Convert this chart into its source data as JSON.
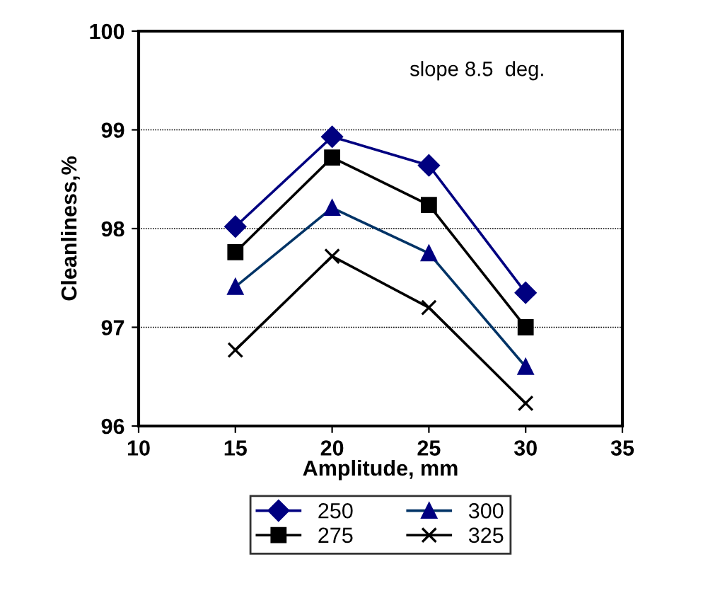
{
  "chart_data": {
    "type": "line",
    "xlabel": "Amplitude, mm",
    "ylabel": "Cleanliness,%",
    "x": [
      15,
      20,
      25,
      30
    ],
    "series": [
      {
        "name": "250",
        "color": "#000080",
        "marker": "diamond",
        "values": [
          98.02,
          98.93,
          98.64,
          97.35
        ]
      },
      {
        "name": "275",
        "color": "#000000",
        "marker": "square",
        "values": [
          97.76,
          98.72,
          98.24,
          97.0
        ]
      },
      {
        "name": "300",
        "color": "#003366",
        "marker": "triangle",
        "values": [
          97.41,
          98.21,
          97.75,
          96.6
        ]
      },
      {
        "name": "325",
        "color": "#000000",
        "marker": "cross",
        "values": [
          96.77,
          97.72,
          97.2,
          96.23
        ]
      }
    ],
    "xlim": [
      10,
      35
    ],
    "xticks": [
      10,
      15,
      20,
      25,
      30,
      35
    ],
    "ylim": [
      96,
      100
    ],
    "yticks": [
      96,
      97,
      98,
      99,
      100
    ],
    "grid": "y",
    "legend": "bottom",
    "line_style": "solid",
    "annotations": [
      "slope 8.5  deg."
    ]
  }
}
